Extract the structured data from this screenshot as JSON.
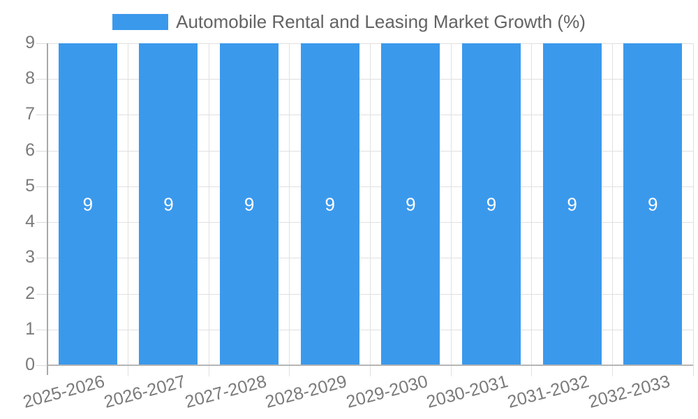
{
  "chart_data": {
    "type": "bar",
    "title": "Automobile Rental and Leasing Market Growth (%)",
    "categories": [
      "2025-2026",
      "2026-2027",
      "2027-2028",
      "2028-2029",
      "2029-2030",
      "2030-2031",
      "2031-2032",
      "2032-2033"
    ],
    "values": [
      9,
      9,
      9,
      9,
      9,
      9,
      9,
      9
    ],
    "bar_value_labels": [
      "9",
      "9",
      "9",
      "9",
      "9",
      "9",
      "9",
      "9"
    ],
    "xlabel": "",
    "ylabel": "",
    "ylim": [
      0,
      9
    ],
    "yticks": [
      0,
      1,
      2,
      3,
      4,
      5,
      6,
      7,
      8,
      9
    ],
    "grid": true,
    "legend_position": "top-center",
    "x_tick_rotation_deg": -15
  },
  "colors": {
    "bar": "#3B99EC",
    "bar_value_text": "#FFFFFF",
    "grid_line": "#E0E0E0",
    "tick_line": "#DADADA",
    "y_axis_line": "#A8A8A8",
    "x_axis_line": "#B5B5B5",
    "axis_text": "#7A7A7A",
    "title_text": "#636363",
    "background": "#FFFFFF"
  }
}
